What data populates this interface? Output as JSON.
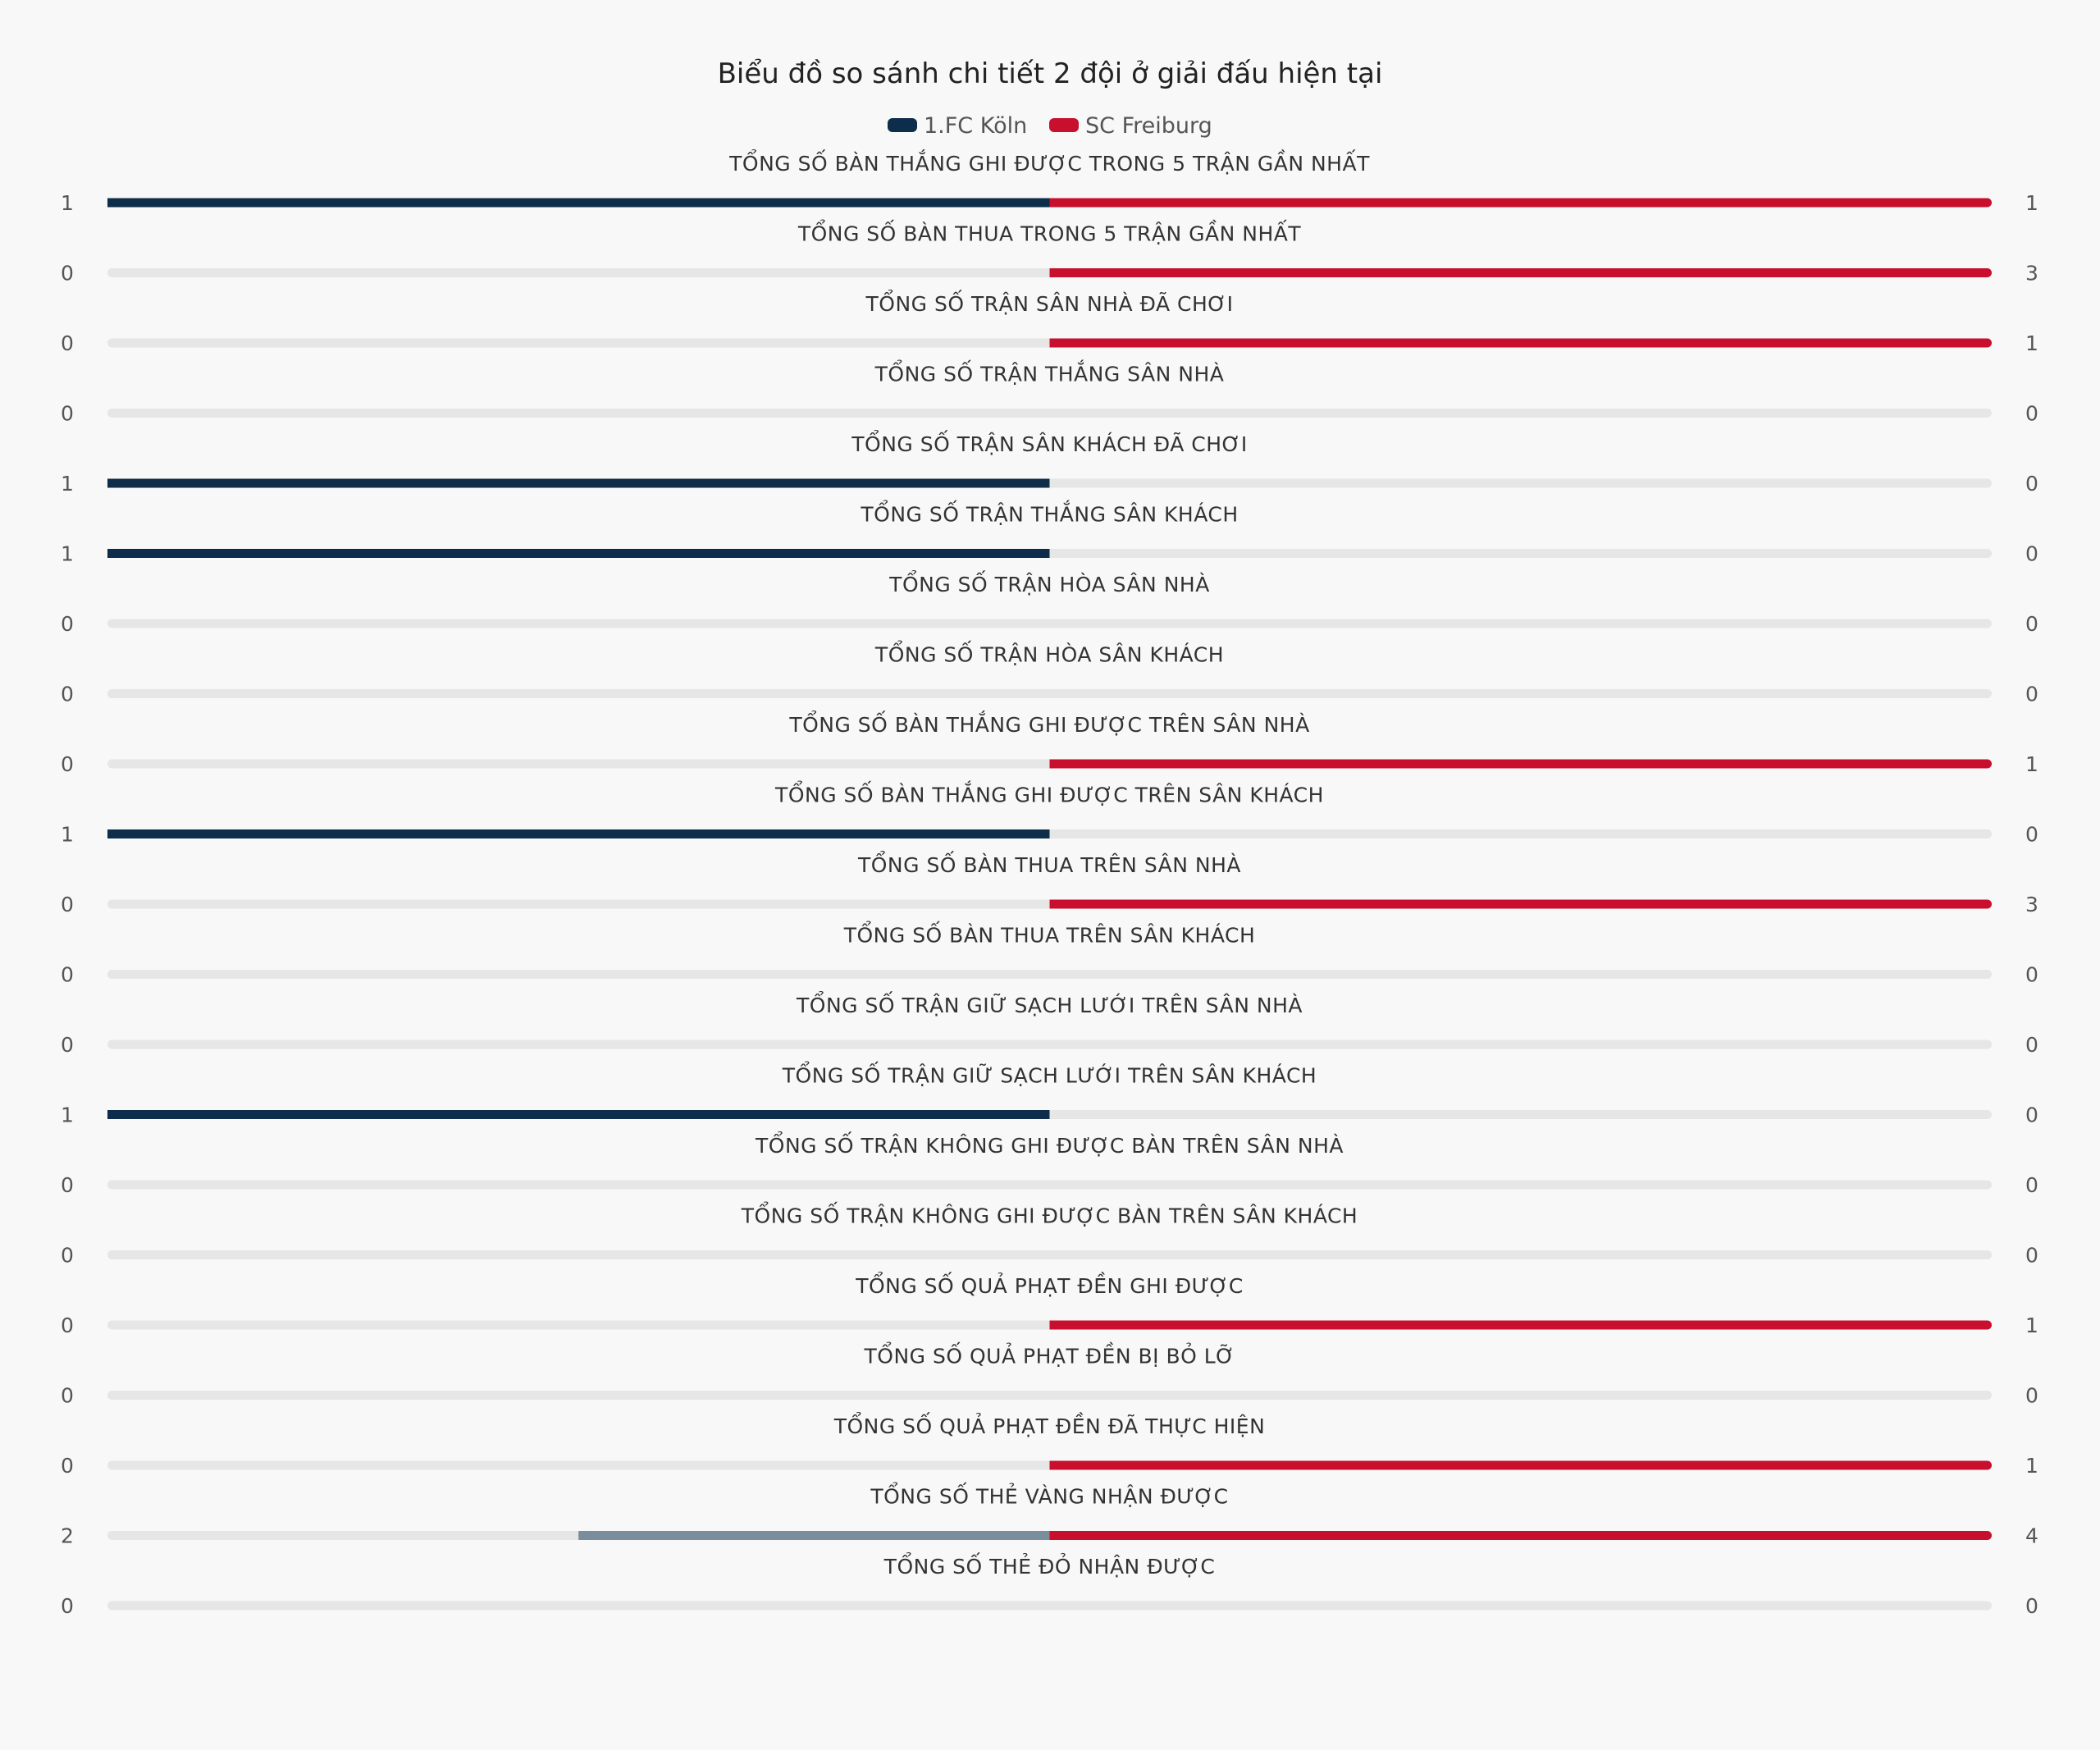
{
  "chart_data": {
    "type": "bar",
    "title": "Biểu đồ so sánh chi tiết 2 đội ở giải đấu hiện tại",
    "colors": {
      "team_left": "#0d2d4a",
      "team_left_light": "#7a8d9c",
      "team_right": "#c8102e",
      "track": "#e6e6e6"
    },
    "series": [
      {
        "name": "1.FC Köln",
        "color": "#0d2d4a"
      },
      {
        "name": "SC Freiburg",
        "color": "#c8102e"
      }
    ],
    "rows": [
      {
        "label": "TỔNG SỐ BÀN THẮNG GHI ĐƯỢC TRONG 5 TRẬN GẦN NHẤT",
        "left": 1,
        "right": 1
      },
      {
        "label": "TỔNG SỐ BÀN THUA TRONG 5 TRẬN GẦN NHẤT",
        "left": 0,
        "right": 3
      },
      {
        "label": "TỔNG SỐ TRẬN SÂN NHÀ ĐÃ CHƠI",
        "left": 0,
        "right": 1
      },
      {
        "label": "TỔNG SỐ TRẬN THẮNG SÂN NHÀ",
        "left": 0,
        "right": 0
      },
      {
        "label": "TỔNG SỐ TRẬN SÂN KHÁCH ĐÃ CHƠI",
        "left": 1,
        "right": 0
      },
      {
        "label": "TỔNG SỐ TRẬN THẮNG SÂN KHÁCH",
        "left": 1,
        "right": 0
      },
      {
        "label": "TỔNG SỐ TRẬN HÒA SÂN NHÀ",
        "left": 0,
        "right": 0
      },
      {
        "label": "TỔNG SỐ TRẬN HÒA SÂN KHÁCH",
        "left": 0,
        "right": 0
      },
      {
        "label": "TỔNG SỐ BÀN THẮNG GHI ĐƯỢC TRÊN SÂN NHÀ",
        "left": 0,
        "right": 1
      },
      {
        "label": "TỔNG SỐ BÀN THẮNG GHI ĐƯỢC TRÊN SÂN KHÁCH",
        "left": 1,
        "right": 0
      },
      {
        "label": "TỔNG SỐ BÀN THUA TRÊN SÂN NHÀ",
        "left": 0,
        "right": 3
      },
      {
        "label": "TỔNG SỐ BÀN THUA TRÊN SÂN KHÁCH",
        "left": 0,
        "right": 0
      },
      {
        "label": "TỔNG SỐ TRẬN GIỮ SẠCH LƯỚI TRÊN SÂN NHÀ",
        "left": 0,
        "right": 0
      },
      {
        "label": "TỔNG SỐ TRẬN GIỮ SẠCH LƯỚI TRÊN SÂN KHÁCH",
        "left": 1,
        "right": 0
      },
      {
        "label": "TỔNG SỐ TRẬN KHÔNG GHI ĐƯỢC BÀN TRÊN SÂN NHÀ",
        "left": 0,
        "right": 0
      },
      {
        "label": "TỔNG SỐ TRẬN KHÔNG GHI ĐƯỢC BÀN TRÊN SÂN KHÁCH",
        "left": 0,
        "right": 0
      },
      {
        "label": "TỔNG SỐ QUẢ PHẠT ĐỀN GHI ĐƯỢC",
        "left": 0,
        "right": 1
      },
      {
        "label": "TỔNG SỐ QUẢ PHẠT ĐỀN BỊ BỎ LỠ",
        "left": 0,
        "right": 0
      },
      {
        "label": "TỔNG SỐ QUẢ PHẠT ĐỀN ĐÃ THỰC HIỆN",
        "left": 0,
        "right": 1
      },
      {
        "label": "TỔNG SỐ THẺ VÀNG NHẬN ĐƯỢC",
        "left": 2,
        "right": 4
      },
      {
        "label": "TỔNG SỐ THẺ ĐỎ NHẬN ĐƯỢC",
        "left": 0,
        "right": 0
      }
    ]
  }
}
